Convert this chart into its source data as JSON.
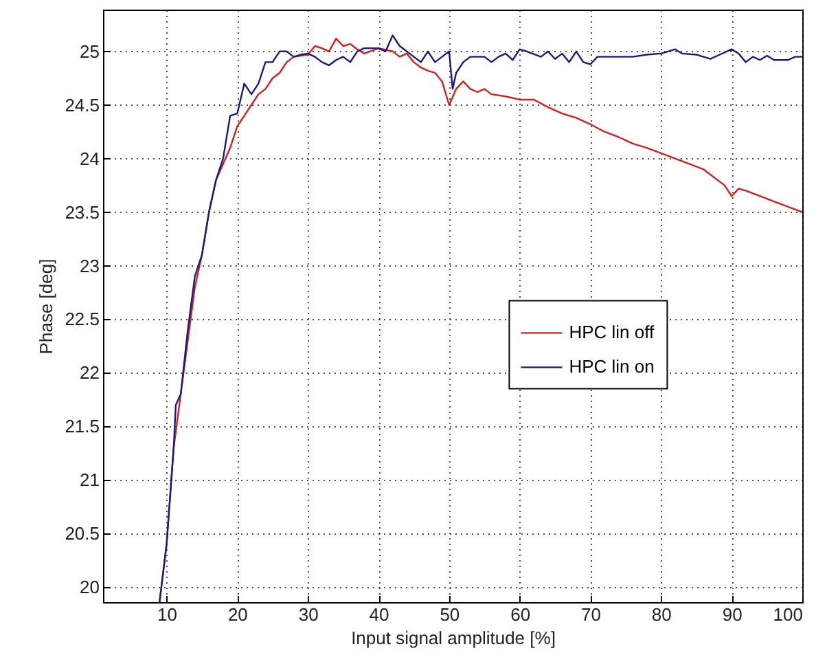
{
  "chart_data": {
    "type": "line",
    "xlabel": "Input signal amplitude [%]",
    "ylabel": "Phase [deg]",
    "xlim": [
      1,
      100
    ],
    "xticks": [
      10,
      20,
      30,
      40,
      50,
      60,
      70,
      80,
      90,
      100
    ],
    "ylim": [
      19.86,
      25.39
    ],
    "yticks": [
      20,
      20.5,
      21,
      21.5,
      22,
      22.5,
      23,
      23.5,
      24,
      24.5,
      25
    ],
    "grid": true,
    "legend": "right",
    "series": [
      {
        "name": "HPC lin off",
        "color": "#cc2222",
        "x": [
          9,
          10,
          11,
          12,
          13,
          14,
          15,
          16,
          17,
          18,
          19,
          20,
          21,
          22,
          23,
          24,
          25,
          26,
          27,
          28,
          30,
          31,
          32,
          33,
          34,
          35,
          36,
          37,
          38,
          40,
          42,
          43,
          44,
          45,
          46,
          47,
          48,
          49,
          50,
          51,
          52,
          53,
          54,
          55,
          56,
          58,
          60,
          62,
          64,
          66,
          68,
          70,
          72,
          74,
          76,
          78,
          80,
          82,
          84,
          86,
          88,
          89,
          90,
          91,
          92,
          94,
          96,
          98,
          100
        ],
        "values": [
          19.86,
          20.4,
          21.3,
          21.8,
          22.3,
          22.8,
          23.1,
          23.5,
          23.8,
          23.95,
          24.1,
          24.3,
          24.4,
          24.5,
          24.6,
          24.65,
          24.75,
          24.8,
          24.9,
          24.95,
          24.97,
          25.05,
          25.03,
          25.0,
          25.12,
          25.05,
          25.07,
          25.02,
          24.98,
          25.03,
          25.0,
          24.95,
          24.98,
          24.9,
          24.85,
          24.82,
          24.8,
          24.72,
          24.5,
          24.65,
          24.72,
          24.65,
          24.62,
          24.65,
          24.6,
          24.58,
          24.55,
          24.55,
          24.48,
          24.42,
          24.38,
          24.32,
          24.25,
          24.2,
          24.14,
          24.1,
          24.05,
          24.0,
          23.95,
          23.9,
          23.8,
          23.75,
          23.65,
          23.72,
          23.7,
          23.65,
          23.6,
          23.55,
          23.5
        ]
      },
      {
        "name": "HPC lin on",
        "color": "#1a1a7a",
        "x": [
          9,
          10,
          11,
          11.3,
          12,
          13,
          14,
          15,
          16,
          17,
          18,
          19,
          20,
          21,
          22,
          23,
          24,
          25,
          26,
          27,
          28,
          29,
          30,
          31,
          32,
          33,
          34,
          35,
          36,
          37,
          38,
          40,
          41,
          42,
          43,
          44,
          45,
          46,
          47,
          48,
          49,
          50,
          50.5,
          51,
          52,
          53,
          55,
          56,
          57,
          58,
          59,
          60,
          61,
          63,
          64,
          65,
          66,
          67,
          68,
          69,
          70,
          71,
          72,
          74,
          76,
          78,
          80,
          81,
          82,
          83,
          85,
          87,
          88,
          90,
          91,
          92,
          93,
          94,
          95,
          96,
          98,
          99,
          100
        ],
        "values": [
          19.86,
          20.4,
          21.3,
          21.7,
          21.8,
          22.4,
          22.9,
          23.1,
          23.5,
          23.8,
          24.0,
          24.4,
          24.42,
          24.7,
          24.6,
          24.7,
          24.9,
          24.9,
          25.0,
          25.0,
          24.95,
          24.97,
          24.98,
          24.95,
          24.9,
          24.87,
          24.92,
          24.95,
          24.9,
          25.0,
          25.03,
          25.03,
          25.0,
          25.15,
          25.05,
          25.0,
          24.95,
          24.9,
          25.0,
          24.9,
          24.95,
          25.0,
          24.65,
          24.8,
          24.9,
          24.95,
          24.95,
          24.9,
          24.95,
          24.98,
          24.92,
          25.02,
          25.0,
          24.95,
          25.0,
          24.93,
          24.98,
          24.9,
          25.0,
          24.9,
          24.88,
          24.95,
          24.95,
          24.95,
          24.95,
          24.97,
          24.98,
          25.0,
          25.02,
          24.98,
          24.97,
          24.93,
          24.96,
          25.02,
          24.98,
          24.9,
          24.95,
          24.92,
          24.96,
          24.92,
          24.92,
          24.95,
          24.95
        ]
      }
    ]
  }
}
